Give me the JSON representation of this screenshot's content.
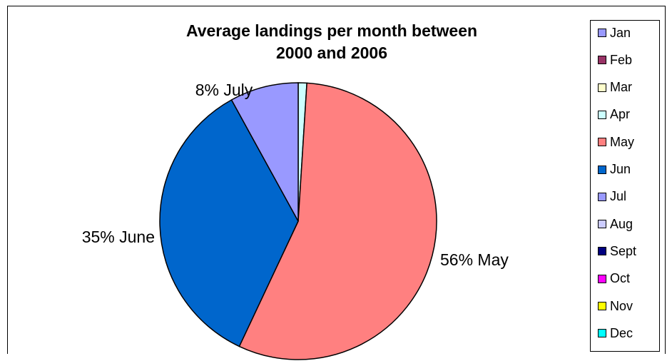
{
  "chart_data": {
    "type": "pie",
    "title": "Average landings per month between 2000 and 2006",
    "title_lines": [
      "Average landings per month between",
      "2000 and 2006"
    ],
    "categories": [
      "Jan",
      "Feb",
      "Mar",
      "Apr",
      "May",
      "Jun",
      "Jul",
      "Aug",
      "Sept",
      "Oct",
      "Nov",
      "Dec"
    ],
    "values": [
      0,
      0,
      0,
      1,
      56,
      35,
      8,
      0,
      0,
      0,
      0,
      0
    ],
    "colors": [
      "#9999ff",
      "#993366",
      "#ffffcc",
      "#ccffff",
      "#ff8080",
      "#0066cc",
      "#9999ff",
      "#ccccff",
      "#000080",
      "#ff00ff",
      "#ffff00",
      "#00ffff"
    ],
    "data_labels": [
      {
        "category": "Jul",
        "text": "8% July"
      },
      {
        "category": "Jun",
        "text": "35% June"
      },
      {
        "category": "May",
        "text": "56% May"
      }
    ],
    "legend_position": "right"
  }
}
